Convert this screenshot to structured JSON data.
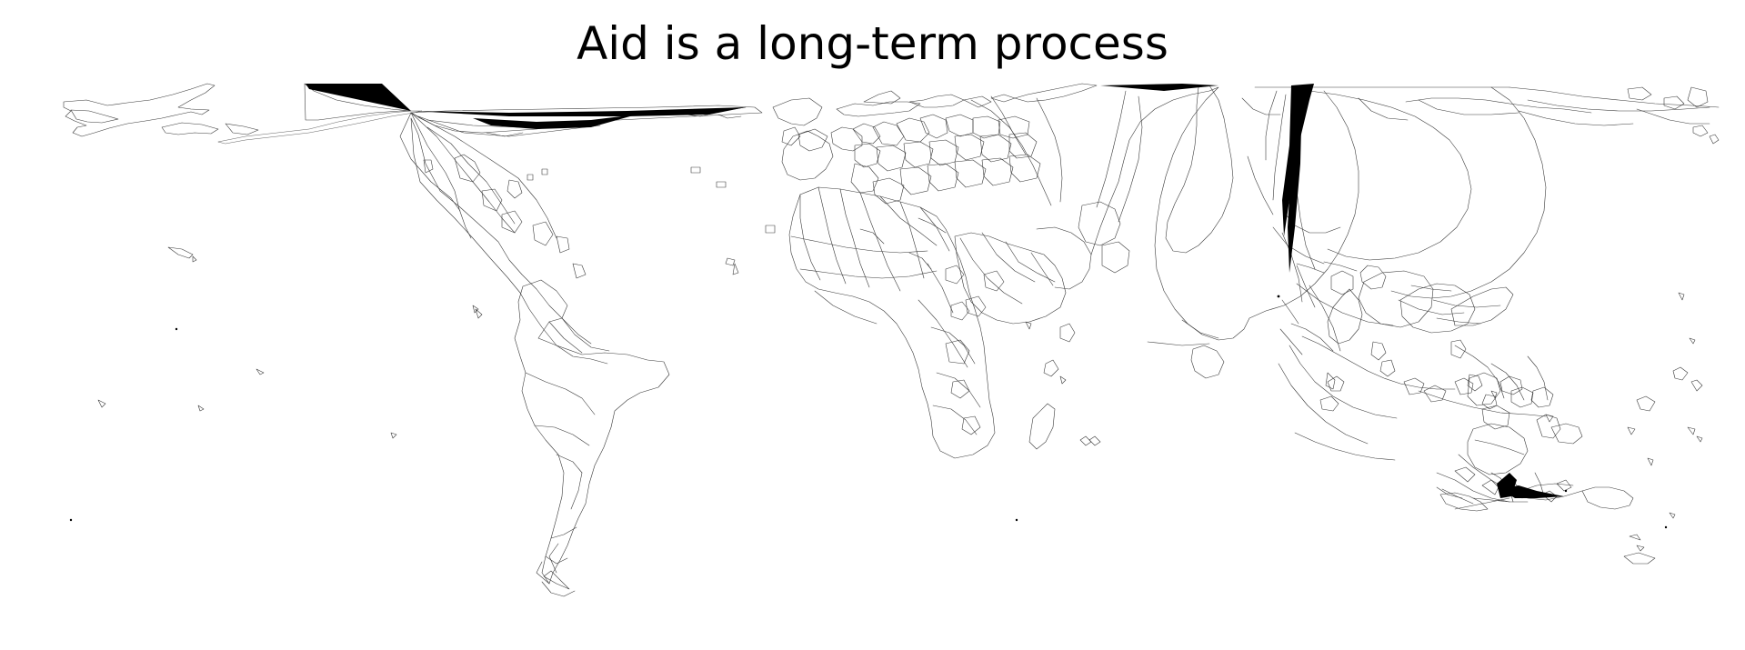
{
  "title": "Aid is a long-term process",
  "map": {
    "type": "cartogram-world-outline",
    "projection": "equirectangular",
    "colors": {
      "background": "#ffffff",
      "outline": "#3a3a3a",
      "distortion_fill": "#000000"
    }
  }
}
